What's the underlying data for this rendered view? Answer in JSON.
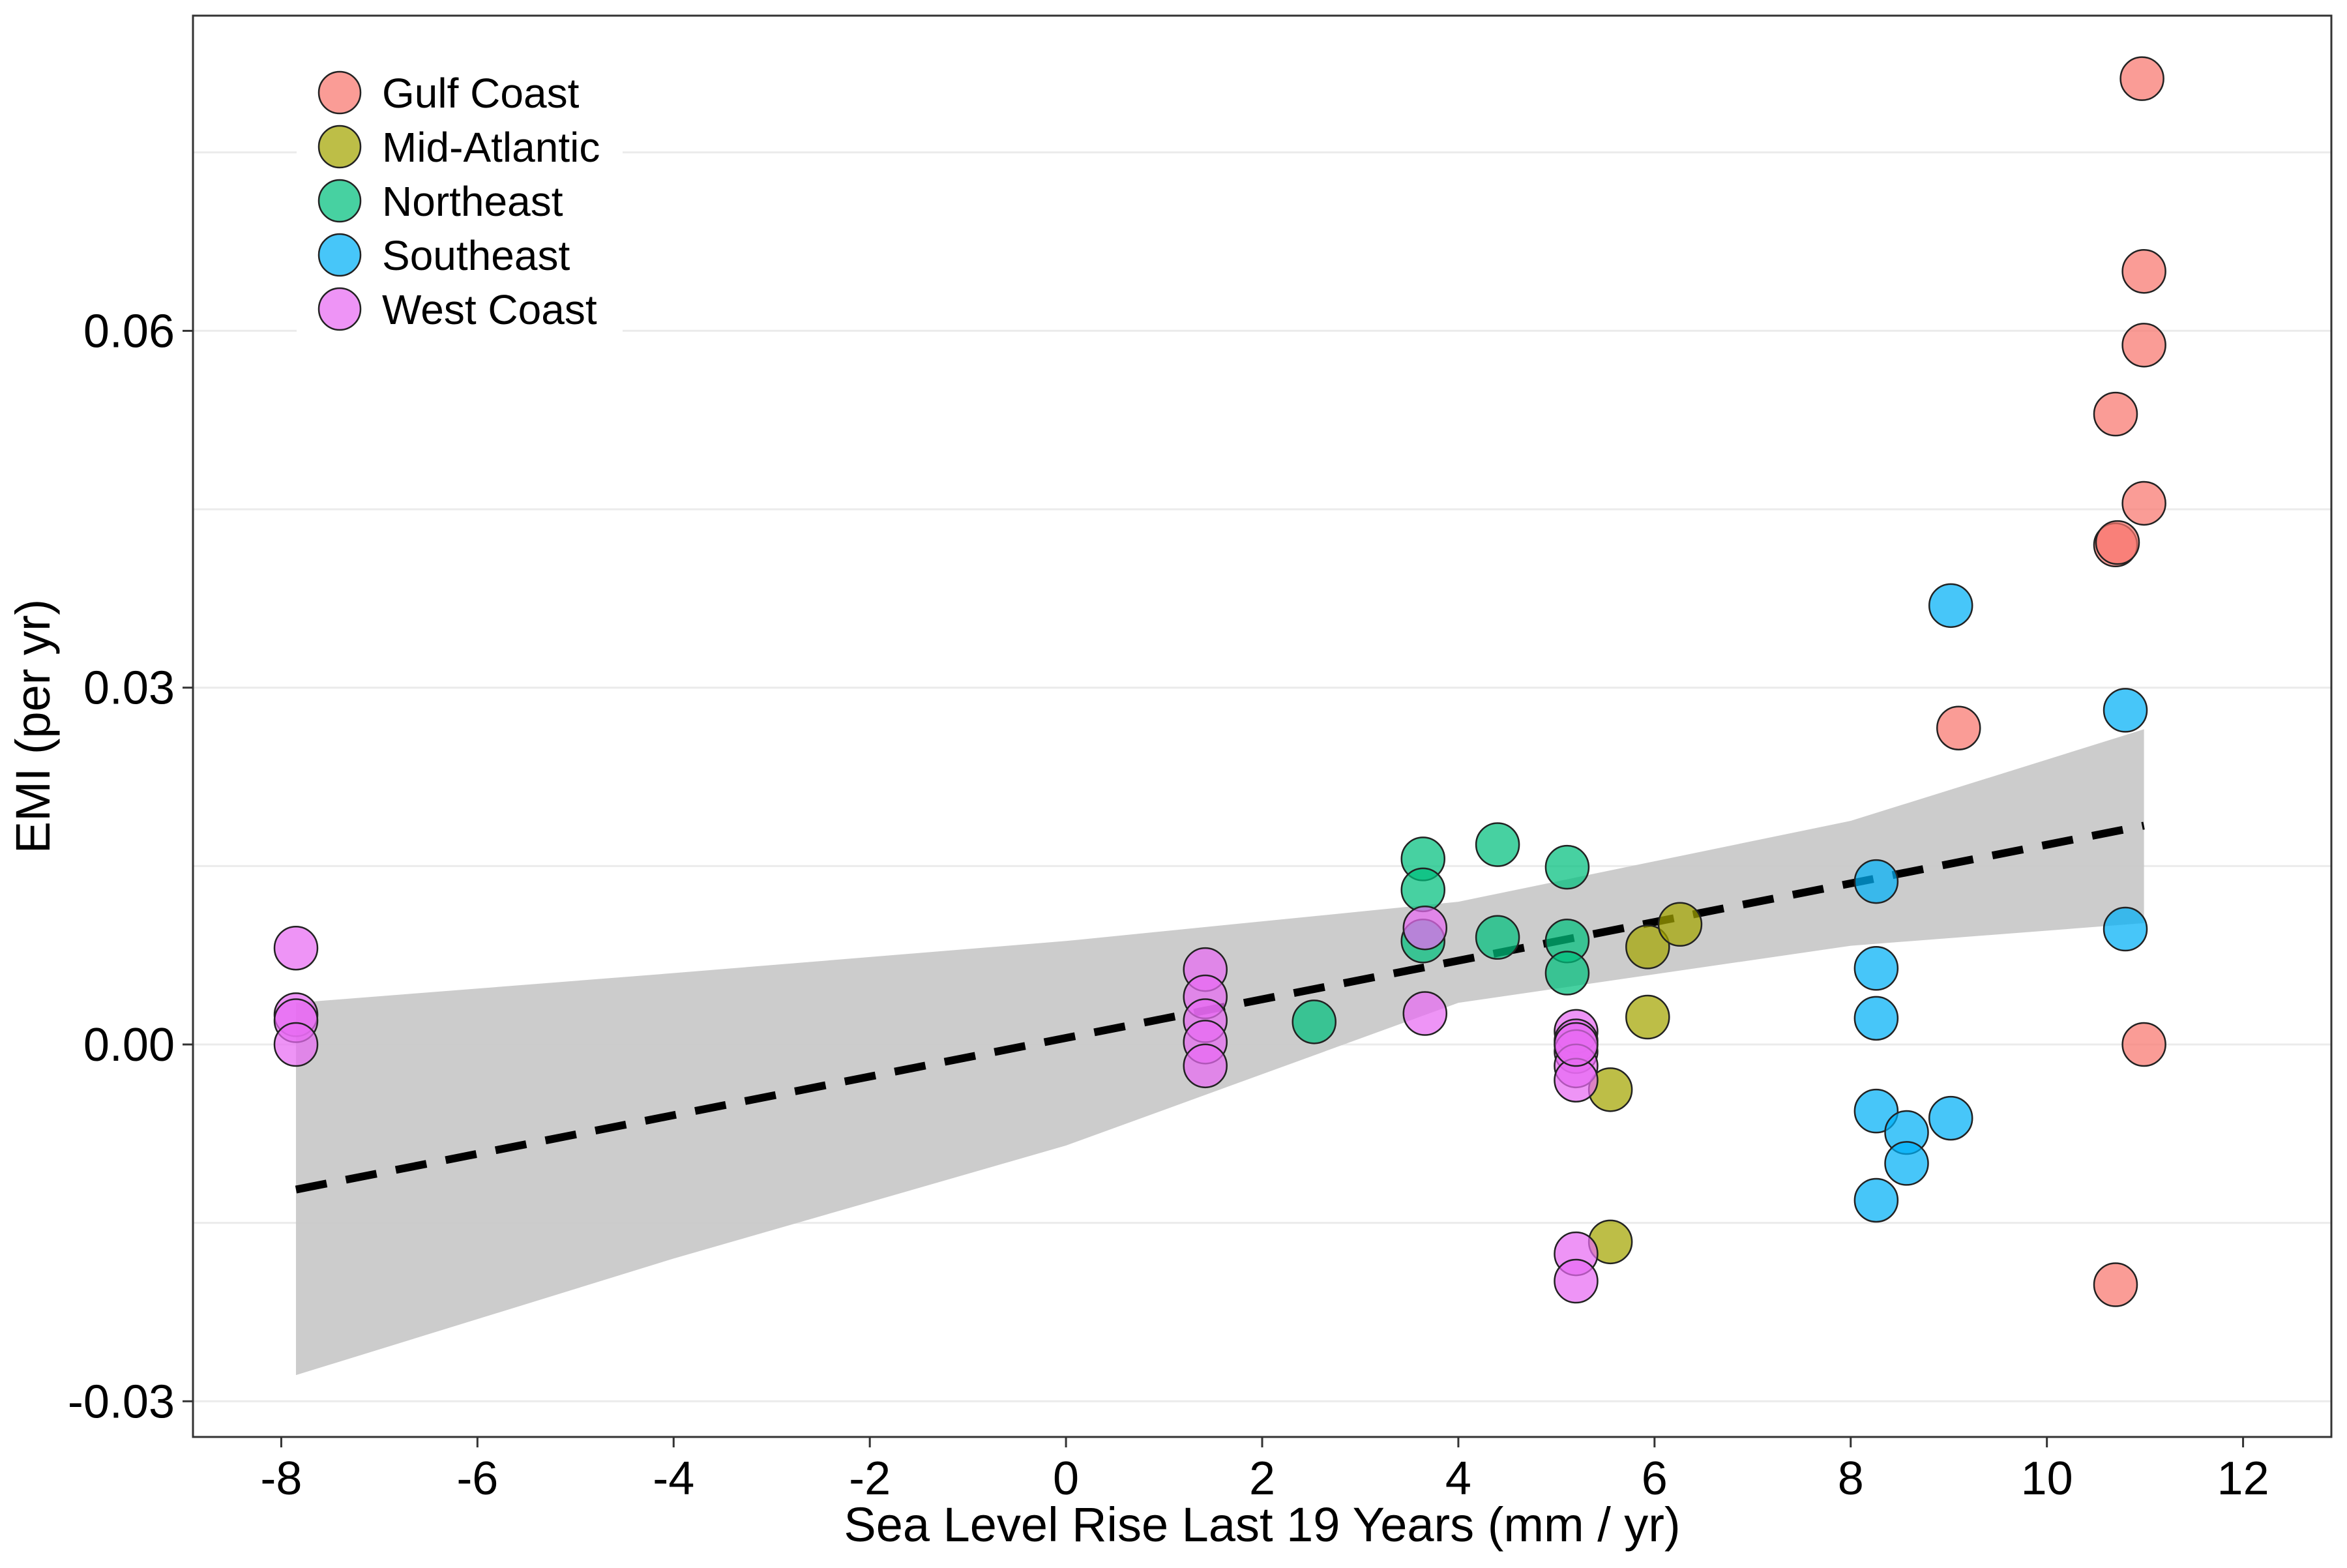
{
  "chart_data": {
    "type": "scatter",
    "xlabel": "Sea Level Rise Last 19 Years (mm / yr)",
    "ylabel": "EMI (per yr)",
    "xlim": [
      -8.9,
      12.9
    ],
    "ylim": [
      -0.033,
      0.0865
    ],
    "x_ticks": [
      -8,
      -6,
      -4,
      -2,
      0,
      2,
      4,
      6,
      8,
      10,
      12
    ],
    "x_tick_labels": [
      "-8",
      "-6",
      "-4",
      "-2",
      "0",
      "2",
      "4",
      "6",
      "8",
      "10",
      "12"
    ],
    "y_ticks": [
      -0.03,
      0.0,
      0.03,
      0.06
    ],
    "y_tick_labels": [
      "-0.03",
      "0.00",
      "0.03",
      "0.06"
    ],
    "grid": "horizontal only",
    "legend_position": "top-left",
    "series": [
      {
        "name": "Gulf Coast",
        "color": "#F8766D",
        "points": [
          [
            10.97,
            0.0812
          ],
          [
            10.99,
            0.065
          ],
          [
            10.99,
            0.0588
          ],
          [
            10.7,
            0.053
          ],
          [
            10.99,
            0.0455
          ],
          [
            10.7,
            0.042
          ],
          [
            10.72,
            0.0422
          ],
          [
            9.1,
            0.0266
          ],
          [
            10.99,
            0.0
          ],
          [
            10.7,
            -0.0202
          ]
        ]
      },
      {
        "name": "Mid-Atlantic",
        "color": "#A3A500",
        "points": [
          [
            5.93,
            0.0082
          ],
          [
            6.26,
            0.0101
          ],
          [
            5.93,
            0.0023
          ],
          [
            5.55,
            -0.0038
          ],
          [
            5.55,
            -0.0166
          ]
        ]
      },
      {
        "name": "Northeast",
        "color": "#00BF7D",
        "points": [
          [
            3.64,
            0.0156
          ],
          [
            3.64,
            0.013
          ],
          [
            3.64,
            0.0087
          ],
          [
            4.4,
            0.0168
          ],
          [
            4.4,
            0.009
          ],
          [
            5.11,
            0.0149
          ],
          [
            5.11,
            0.0087
          ],
          [
            5.11,
            0.006
          ],
          [
            2.53,
            0.0019
          ]
        ]
      },
      {
        "name": "Southeast",
        "color": "#00B0F6",
        "points": [
          [
            9.02,
            0.0369
          ],
          [
            10.8,
            0.0281
          ],
          [
            8.26,
            0.0137
          ],
          [
            10.8,
            0.0097
          ],
          [
            8.26,
            0.0064
          ],
          [
            8.26,
            0.0022
          ],
          [
            8.26,
            -0.0056
          ],
          [
            8.57,
            -0.0074
          ],
          [
            9.02,
            -0.0062
          ],
          [
            8.57,
            -0.01
          ],
          [
            8.26,
            -0.0131
          ]
        ]
      },
      {
        "name": "West Coast",
        "color": "#E76BF3",
        "points": [
          [
            -7.85,
            0.0081
          ],
          [
            -7.85,
            0.0025
          ],
          [
            -7.85,
            0.002
          ],
          [
            -7.85,
            0.0
          ],
          [
            1.42,
            0.0063
          ],
          [
            1.42,
            0.004
          ],
          [
            1.42,
            0.002
          ],
          [
            1.42,
            0.0002
          ],
          [
            1.42,
            -0.0018
          ],
          [
            3.66,
            0.0098
          ],
          [
            3.66,
            0.0026
          ],
          [
            5.2,
            0.0011
          ],
          [
            5.2,
            0.0003
          ],
          [
            5.2,
            -0.0006
          ],
          [
            5.2,
            -0.0018
          ],
          [
            5.2,
            -0.003
          ],
          [
            5.2,
            0.0
          ],
          [
            5.2,
            -0.0176
          ],
          [
            5.2,
            -0.0199
          ]
        ]
      }
    ],
    "fit": {
      "style": "dashed black line",
      "line": [
        [
          -7.85,
          -0.0122
        ],
        [
          10.99,
          0.0184
        ]
      ],
      "confidence_band": {
        "x": [
          -7.85,
          -4,
          0,
          4,
          8,
          10.99
        ],
        "upper": [
          0.0035,
          0.006,
          0.0087,
          0.012,
          0.0188,
          0.0265
        ],
        "lower": [
          -0.0278,
          -0.018,
          -0.0085,
          0.0035,
          0.0083,
          0.0102
        ]
      }
    }
  }
}
